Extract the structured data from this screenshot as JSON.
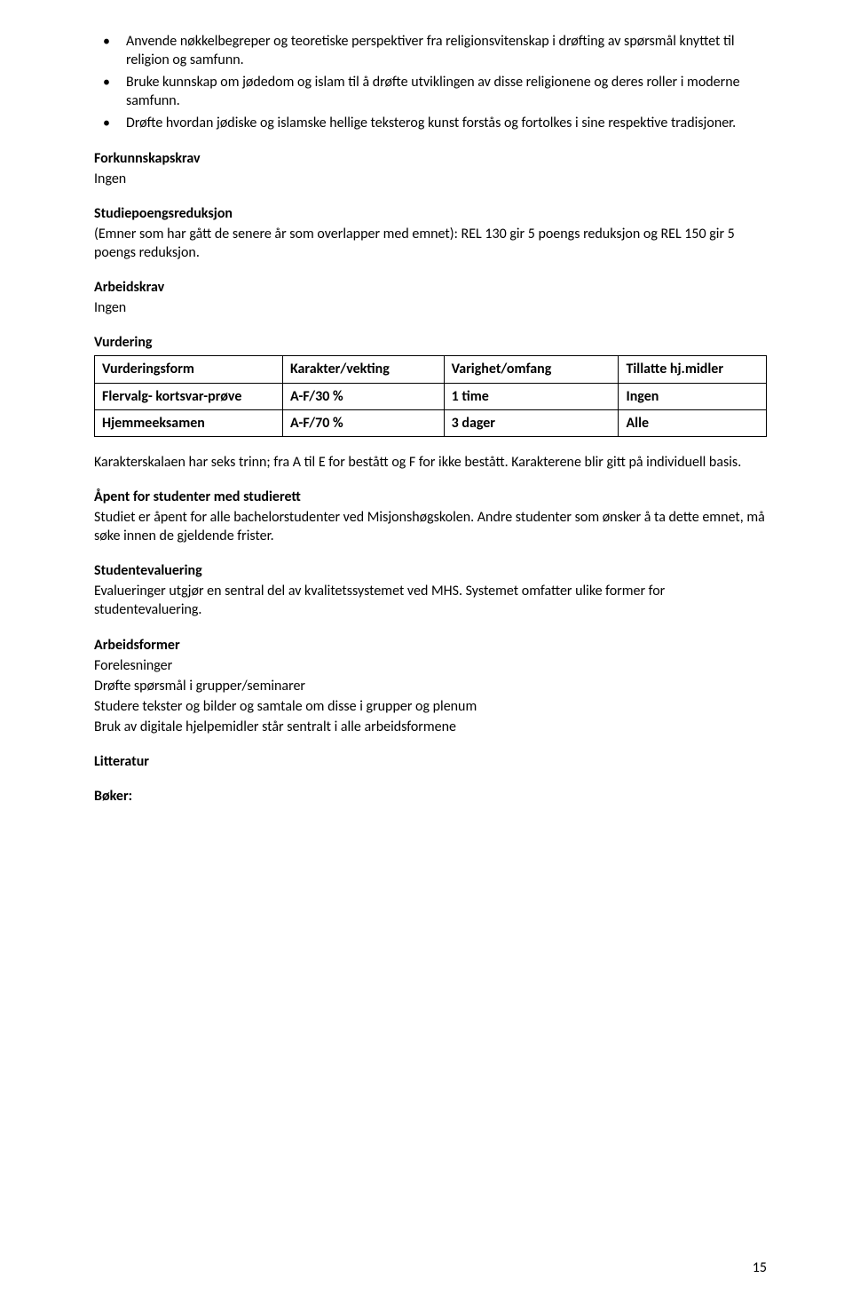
{
  "font_size_pt": 12,
  "text_color": "#000000",
  "background_color": "#ffffff",
  "border_color": "#000000",
  "bullets": {
    "marker": "•",
    "items": [
      "Anvende nøkkelbegreper og teoretiske perspektiver fra religionsvitenskap i drøfting av spørsmål knyttet til religion og samfunn.",
      "Bruke kunnskap om jødedom og islam til å drøfte utviklingen av disse religionene og deres roller i moderne samfunn.",
      "Drøfte hvordan jødiske og islamske hellige teksterog kunst forstås og fortolkes i sine respektive tradisjoner."
    ]
  },
  "forkunnskapskrav": {
    "heading": "Forkunnskapskrav",
    "text": "Ingen"
  },
  "studiepoengsreduksjon": {
    "heading": "Studiepoengsreduksjon",
    "text": "(Emner som har gått de senere år som overlapper med emnet): REL 130 gir 5 poengs reduksjon og REL 150 gir 5 poengs reduksjon."
  },
  "arbeidskrav": {
    "heading": "Arbeidskrav",
    "text": "Ingen"
  },
  "vurdering": {
    "heading": "Vurdering",
    "table": {
      "columns": [
        "Vurderingsform",
        "Karakter/vekting",
        "Varighet/omfang",
        "Tillatte hj.midler"
      ],
      "rows": [
        [
          "Flervalg- kortsvar-prøve",
          "A-F/30 %",
          "1 time",
          "Ingen"
        ],
        [
          "Hjemmeeksamen",
          "A-F/70 %",
          "3 dager",
          "Alle"
        ]
      ]
    }
  },
  "karakterskala": "Karakterskalaen har seks trinn; fra A til E for bestått og F for ikke bestått. Karakterene blir gitt på individuell basis.",
  "apent": {
    "heading": "Åpent for studenter med studierett",
    "text": "Studiet er åpent for alle bachelorstudenter ved Misjonshøgskolen. Andre studenter som ønsker å ta dette emnet, må søke innen de gjeldende frister."
  },
  "studentevaluering": {
    "heading": "Studentevaluering",
    "text": "Evalueringer utgjør en sentral del av kvalitetssystemet ved MHS. Systemet omfatter ulike former for studentevaluering."
  },
  "arbeidsformer": {
    "heading": "Arbeidsformer",
    "lines": [
      "Forelesninger",
      "Drøfte spørsmål i grupper/seminarer",
      "Studere tekster og bilder og samtale om disse i grupper og plenum",
      "Bruk av digitale hjelpemidler står sentralt i alle arbeidsformene"
    ]
  },
  "litteratur": {
    "heading": "Litteratur"
  },
  "boker": {
    "heading": "Bøker:"
  },
  "page_number": "15"
}
